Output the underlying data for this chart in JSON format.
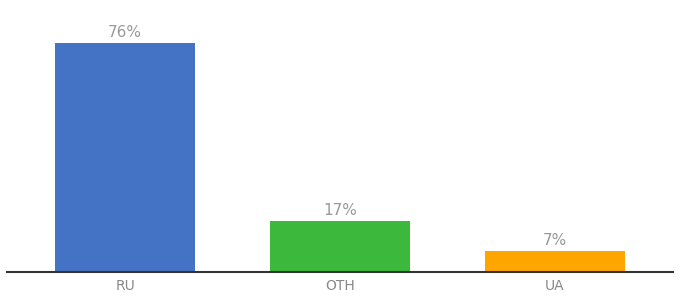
{
  "categories": [
    "RU",
    "OTH",
    "UA"
  ],
  "values": [
    76,
    17,
    7
  ],
  "bar_colors": [
    "#4472C4",
    "#3CB93C",
    "#FFA500"
  ],
  "value_labels": [
    "76%",
    "17%",
    "7%"
  ],
  "background_color": "#ffffff",
  "label_color": "#999999",
  "label_fontsize": 11,
  "tick_fontsize": 10,
  "tick_color": "#888888",
  "bar_width": 0.65,
  "ylim": [
    0,
    88
  ],
  "xlim_left": -0.55,
  "xlim_right": 2.55
}
